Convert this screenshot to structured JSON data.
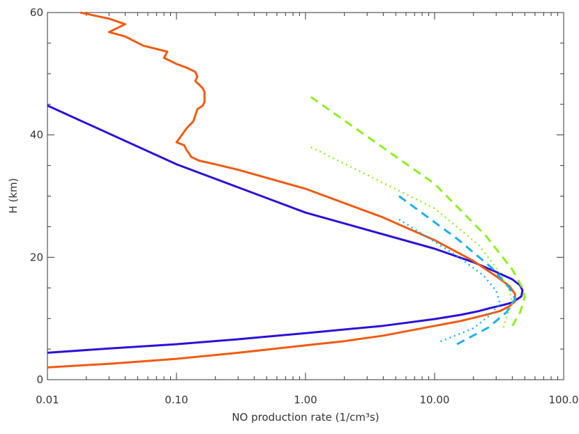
{
  "chart_data": {
    "type": "line",
    "title": "",
    "xlabel": "NO production rate (1/cm³s)",
    "ylabel": "H (km)",
    "xscale": "log",
    "xlim": [
      0.01,
      100
    ],
    "ylim": [
      0,
      60
    ],
    "x_tick_labels": [
      "0.01",
      "0.10",
      "1.00",
      "10.00",
      "100.0"
    ],
    "x_tick_values": [
      0.01,
      0.1,
      1,
      10,
      100
    ],
    "y_tick_labels": [
      "0",
      "20",
      "40",
      "60"
    ],
    "y_tick_values": [
      0,
      20,
      40,
      60
    ],
    "grid": false,
    "legend": "none",
    "series": [
      {
        "color": "#2b10d8",
        "style": "solid",
        "points": [
          [
            0.01,
            44.8
          ],
          [
            0.1,
            35.2
          ],
          [
            1,
            27.3
          ],
          [
            10,
            21.4
          ],
          [
            20,
            19.2
          ],
          [
            30,
            17.6
          ],
          [
            40,
            16.4
          ],
          [
            46,
            15.4
          ],
          [
            48,
            14.6
          ],
          [
            47,
            13.6
          ],
          [
            44,
            13.2
          ],
          [
            40,
            12.6
          ],
          [
            34,
            12.2
          ],
          [
            28,
            11.8
          ],
          [
            22,
            11.2
          ],
          [
            16,
            10.6
          ],
          [
            10,
            9.9
          ],
          [
            4,
            8.8
          ],
          [
            1,
            7.6
          ],
          [
            0.3,
            6.6
          ],
          [
            0.1,
            5.8
          ],
          [
            0.03,
            5.1
          ],
          [
            0.01,
            4.4
          ]
        ]
      },
      {
        "color": "#f05a10",
        "style": "solid",
        "points": [
          [
            0.018,
            60
          ],
          [
            0.03,
            59
          ],
          [
            0.04,
            58.1
          ],
          [
            0.03,
            56.8
          ],
          [
            0.04,
            56.1
          ],
          [
            0.055,
            54.6
          ],
          [
            0.085,
            53.6
          ],
          [
            0.08,
            52.6
          ],
          [
            0.1,
            51.6
          ],
          [
            0.12,
            51
          ],
          [
            0.14,
            50.3
          ],
          [
            0.145,
            49.5
          ],
          [
            0.14,
            48.8
          ],
          [
            0.15,
            48.2
          ],
          [
            0.16,
            47.6
          ],
          [
            0.165,
            47
          ],
          [
            0.165,
            46.2
          ],
          [
            0.165,
            45.4
          ],
          [
            0.16,
            44.8
          ],
          [
            0.145,
            44.2
          ],
          [
            0.14,
            43.2
          ],
          [
            0.135,
            42.2
          ],
          [
            0.12,
            41.1
          ],
          [
            0.11,
            40
          ],
          [
            0.1,
            38.8
          ],
          [
            0.115,
            38.3
          ],
          [
            0.12,
            37.5
          ],
          [
            0.125,
            37
          ],
          [
            0.13,
            36.4
          ],
          [
            0.15,
            35.8
          ],
          [
            0.2,
            35.2
          ],
          [
            0.3,
            34.3
          ],
          [
            1,
            31.2
          ],
          [
            4,
            26.5
          ],
          [
            10,
            22.8
          ],
          [
            20,
            19.4
          ],
          [
            30,
            16.9
          ],
          [
            38,
            15.3
          ],
          [
            42,
            14
          ],
          [
            42,
            12.8
          ],
          [
            38,
            12
          ],
          [
            32,
            11.2
          ],
          [
            25,
            10.6
          ],
          [
            16,
            9.6
          ],
          [
            8,
            8.4
          ],
          [
            4,
            7.2
          ],
          [
            2,
            6.3
          ],
          [
            1,
            5.6
          ],
          [
            0.3,
            4.4
          ],
          [
            0.1,
            3.4
          ],
          [
            0.03,
            2.6
          ],
          [
            0.01,
            2.0
          ]
        ]
      },
      {
        "color": "#8ef020",
        "style": "dashed",
        "points": [
          [
            1.1,
            46.2
          ],
          [
            10,
            32
          ],
          [
            25,
            23.5
          ],
          [
            40,
            18
          ],
          [
            48,
            15
          ],
          [
            50,
            13.5
          ],
          [
            46,
            11
          ],
          [
            40,
            8.8
          ]
        ]
      },
      {
        "color": "#8ef020",
        "style": "dotted",
        "points": [
          [
            1.1,
            38
          ],
          [
            10,
            28
          ],
          [
            22,
            22
          ],
          [
            32,
            17.5
          ],
          [
            38,
            14.5
          ],
          [
            40,
            12.5
          ],
          [
            36,
            10.2
          ],
          [
            34,
            8.4
          ]
        ]
      },
      {
        "color": "#1ab0ee",
        "style": "dashed",
        "points": [
          [
            5.3,
            30
          ],
          [
            15,
            23
          ],
          [
            28,
            18.2
          ],
          [
            38,
            15
          ],
          [
            42,
            13.2
          ],
          [
            36,
            11
          ],
          [
            26,
            8.5
          ],
          [
            14,
            5.5
          ]
        ]
      },
      {
        "color": "#1ab0ee",
        "style": "dotted",
        "points": [
          [
            5.3,
            26.2
          ],
          [
            15,
            20.2
          ],
          [
            24,
            17
          ],
          [
            30,
            14.5
          ],
          [
            32,
            12.5
          ],
          [
            27,
            10.6
          ],
          [
            20,
            8.4
          ],
          [
            11,
            6.2
          ]
        ]
      }
    ]
  }
}
